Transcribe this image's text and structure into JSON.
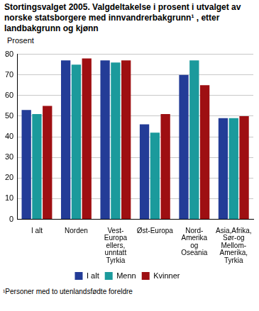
{
  "chart_data": {
    "type": "bar",
    "title": "Stortingsvalget 2005. Valgdeltakelse i prosent i utvalget av norske statsborgere med innvandrerbakgrunn¹ , etter landbakgrunn og kjønn",
    "y_label": "Prosent",
    "footnote": "¹Personer med to utenlandsfødte foreldre",
    "categories": [
      [
        "I alt"
      ],
      [
        "Norden"
      ],
      [
        "Vest-",
        "Europa",
        "ellers,",
        "unntatt",
        "Tyrkia"
      ],
      [
        "Øst-Europa"
      ],
      [
        "Nord-",
        "Amerika",
        "og",
        "Oseania"
      ],
      [
        "Asia,Afrika,",
        "Sør-og",
        "Mellom-",
        "Amerika,",
        "Tyrkia"
      ]
    ],
    "series": [
      {
        "name": "I alt",
        "color": "#233c97",
        "values": [
          53,
          77,
          77,
          46,
          70,
          49
        ]
      },
      {
        "name": "Menn",
        "color": "#1b9a9c",
        "values": [
          51,
          75,
          76,
          42,
          77,
          49
        ]
      },
      {
        "name": "Kvinner",
        "color": "#9e0f12",
        "values": [
          55,
          78,
          77,
          51,
          65,
          50
        ]
      }
    ],
    "ylim": [
      0,
      80
    ],
    "yticks": [
      0,
      10,
      20,
      30,
      40,
      50,
      60,
      70,
      80
    ],
    "grid": true,
    "legend": "bottom"
  }
}
